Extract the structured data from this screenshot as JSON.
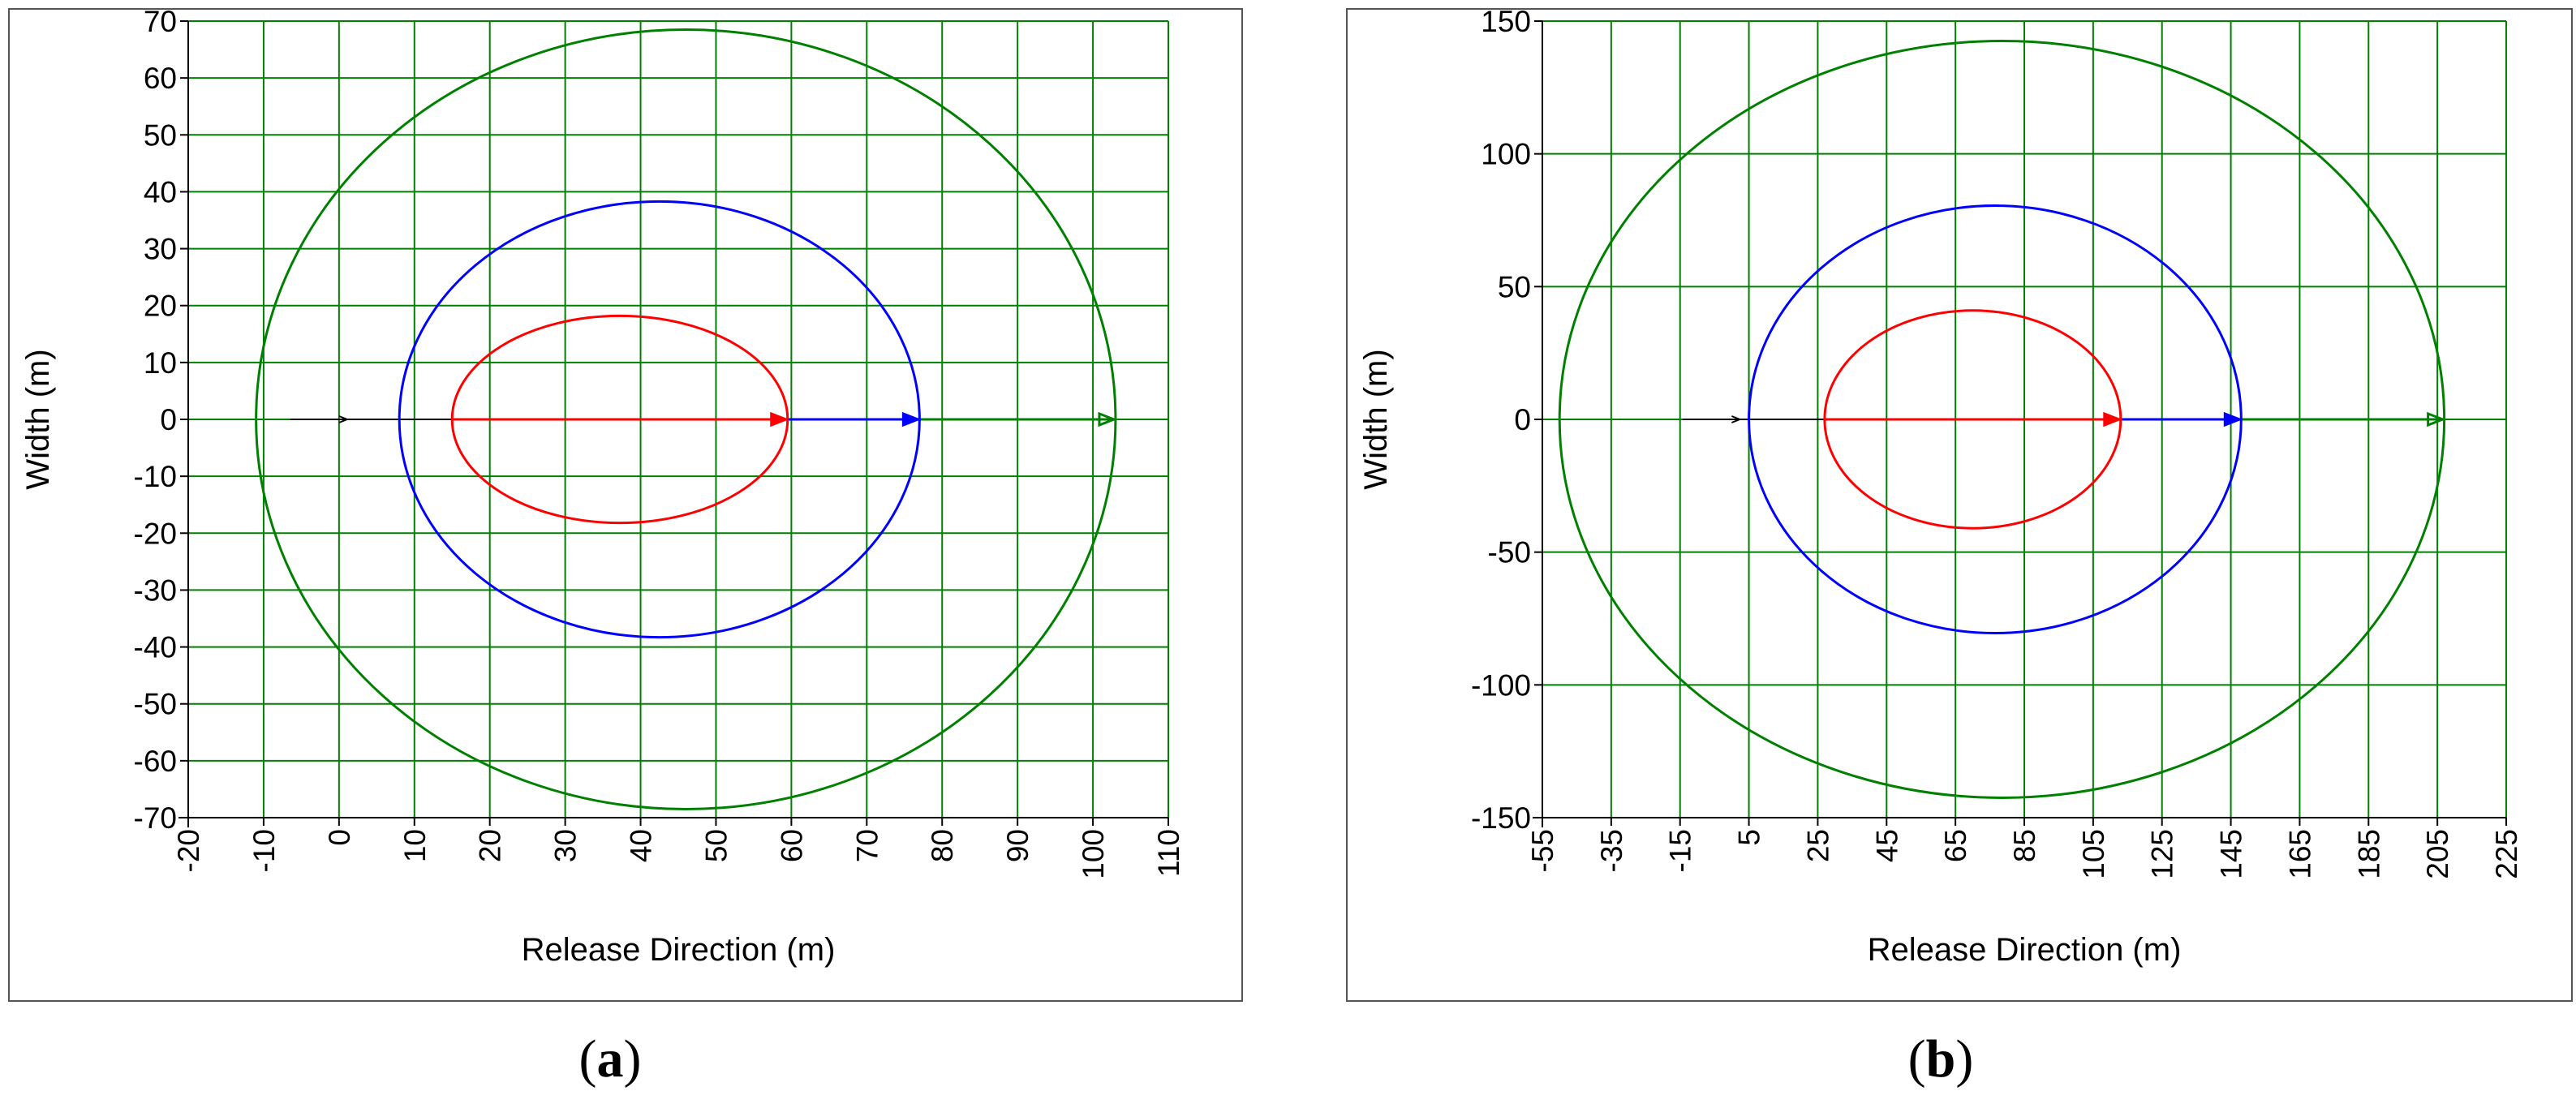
{
  "captions": [
    "a",
    "b"
  ],
  "chart_data": [
    {
      "type": "line",
      "xlabel": "Release Direction (m)",
      "ylabel": "Width (m)",
      "xlim": [
        -20,
        110
      ],
      "ylim": [
        -70,
        70
      ],
      "xticks": [
        -20,
        -10,
        0,
        10,
        20,
        30,
        40,
        50,
        60,
        70,
        80,
        90,
        100,
        110
      ],
      "yticks": [
        -70,
        -60,
        -50,
        -40,
        -30,
        -20,
        -10,
        0,
        10,
        20,
        30,
        40,
        50,
        60,
        70
      ],
      "grid": true,
      "grid_color": "#008000",
      "release_start": 0,
      "series": [
        {
          "color": "#ff0000",
          "x_min": 15,
          "x_max": 59.5,
          "half_width": 18.2
        },
        {
          "color": "#0000ff",
          "x_min": 8,
          "x_max": 77,
          "half_width": 38.3
        },
        {
          "color": "#008000",
          "x_min": -11,
          "x_max": 103,
          "half_width": 68.5
        }
      ]
    },
    {
      "type": "line",
      "xlabel": "Release Direction (m)",
      "ylabel": "Width (m)",
      "xlim": [
        -55,
        225
      ],
      "ylim": [
        -150,
        150
      ],
      "xticks": [
        -55,
        -35,
        -15,
        5,
        25,
        45,
        65,
        85,
        105,
        125,
        145,
        165,
        185,
        205,
        225
      ],
      "yticks": [
        -150,
        -100,
        -50,
        0,
        50,
        100,
        150
      ],
      "grid": true,
      "grid_color": "#008000",
      "release_start": 0,
      "series": [
        {
          "color": "#ff0000",
          "x_min": 27,
          "x_max": 113,
          "half_width": 41
        },
        {
          "color": "#0000ff",
          "x_min": 5,
          "x_max": 148,
          "half_width": 80.5
        },
        {
          "color": "#008000",
          "x_min": -50,
          "x_max": 207,
          "half_width": 142.5
        }
      ]
    }
  ]
}
